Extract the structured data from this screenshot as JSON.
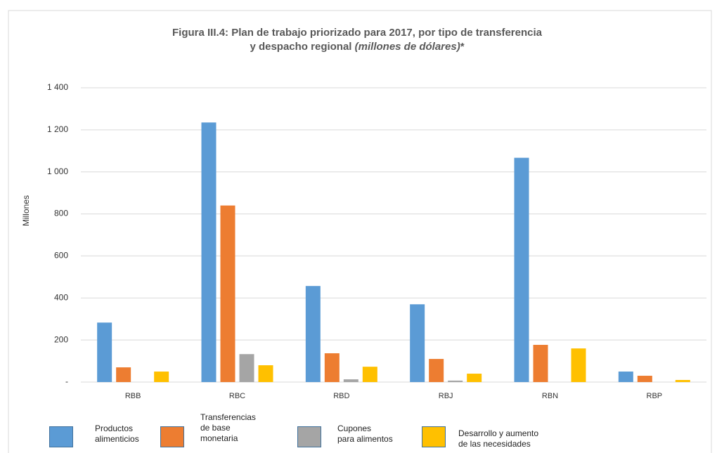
{
  "chart_data": {
    "type": "bar",
    "title_line1": "Figura III.4: Plan de trabajo priorizado para 2017, por tipo de transferencia",
    "title_line2": "y despacho regional ",
    "title_italic": "(millones de dólares)",
    "title_mark": "*",
    "y_label": "Millones",
    "categories": [
      "RBB",
      "RBC",
      "RBD",
      "RBJ",
      "RBN",
      "RBP"
    ],
    "series": [
      {
        "name": "Productos\nalimenticios",
        "color": "#5b9bd5",
        "values": [
          283,
          1235,
          457,
          370,
          1067,
          50
        ]
      },
      {
        "name": "Transferencias\nde base\nmonetaria",
        "color": "#ed7d31",
        "values": [
          70,
          840,
          137,
          110,
          177,
          30
        ]
      },
      {
        "name": "Cupones\npara alimentos",
        "color": "#a5a5a5",
        "values": [
          0,
          133,
          13,
          7,
          0,
          0
        ]
      },
      {
        "name": "Desarrollo y aumento\nde las necesidades",
        "color": "#ffc000",
        "values": [
          50,
          80,
          73,
          40,
          160,
          10
        ]
      }
    ],
    "ylim": [
      0,
      1400
    ],
    "yticks": [
      {
        "value": 0,
        "label": "-"
      },
      200,
      400,
      600,
      800,
      {
        "value": 1000,
        "label": "1 000"
      },
      {
        "value": 1200,
        "label": "1 200"
      },
      {
        "value": 1400,
        "label": "1 400"
      }
    ],
    "grid": true
  }
}
